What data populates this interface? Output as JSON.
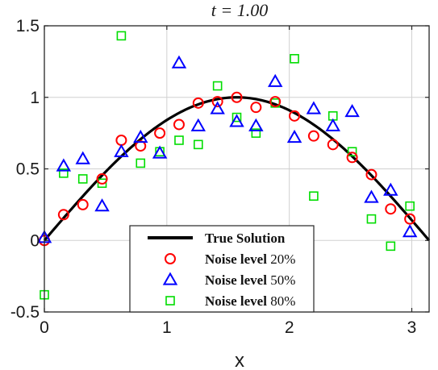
{
  "chart_data": {
    "type": "scatter",
    "title": "t = 1.00",
    "xlabel": "x",
    "ylabel": "",
    "xlim": [
      0,
      3.14159
    ],
    "ylim": [
      -0.5,
      1.5
    ],
    "xticks": [
      0,
      1,
      2,
      3
    ],
    "yticks": [
      -0.5,
      0,
      0.5,
      1,
      1.5
    ],
    "xtick_labels": [
      "0",
      "1",
      "2",
      "3"
    ],
    "ytick_labels": [
      "-0.5",
      "0",
      "0.5",
      "1",
      "1.5"
    ],
    "grid": true,
    "legend_position": "bottom-center",
    "colors": {
      "true_solution": "#000000",
      "noise20": "#ff0000",
      "noise50": "#0000ff",
      "noise80": "#00dd00",
      "grid": "#d0d0d0"
    },
    "line": {
      "name": "True Solution",
      "function": "sin(x)",
      "x_range": [
        0,
        3.14159
      ]
    },
    "x": [
      0,
      0.1571,
      0.3142,
      0.4712,
      0.6283,
      0.7854,
      0.9425,
      1.0996,
      1.2566,
      1.4137,
      1.5708,
      1.7279,
      1.885,
      2.042,
      2.1991,
      2.3562,
      2.5133,
      2.6704,
      2.8274,
      2.9845
    ],
    "series": [
      {
        "name_bold": "Noise level",
        "name_rest": " 20%",
        "marker": "circle",
        "values": [
          0.0,
          0.18,
          0.25,
          0.43,
          0.7,
          0.66,
          0.75,
          0.81,
          0.96,
          0.97,
          1.0,
          0.93,
          0.97,
          0.87,
          0.73,
          0.67,
          0.58,
          0.46,
          0.22,
          0.15
        ]
      },
      {
        "name_bold": "Noise level",
        "name_rest": " 50%",
        "marker": "triangle",
        "values": [
          0.02,
          0.52,
          0.57,
          0.24,
          0.62,
          0.72,
          0.61,
          1.24,
          0.8,
          0.92,
          0.83,
          0.8,
          1.11,
          0.72,
          0.92,
          0.8,
          0.9,
          0.3,
          0.35,
          0.06
        ]
      },
      {
        "name_bold": "Noise level",
        "name_rest": " 80%",
        "marker": "square",
        "values": [
          -0.38,
          0.47,
          0.43,
          0.4,
          1.43,
          0.54,
          0.62,
          0.7,
          0.67,
          1.08,
          0.86,
          0.75,
          0.96,
          1.27,
          0.31,
          0.87,
          0.62,
          0.15,
          -0.04,
          0.24
        ]
      }
    ]
  }
}
